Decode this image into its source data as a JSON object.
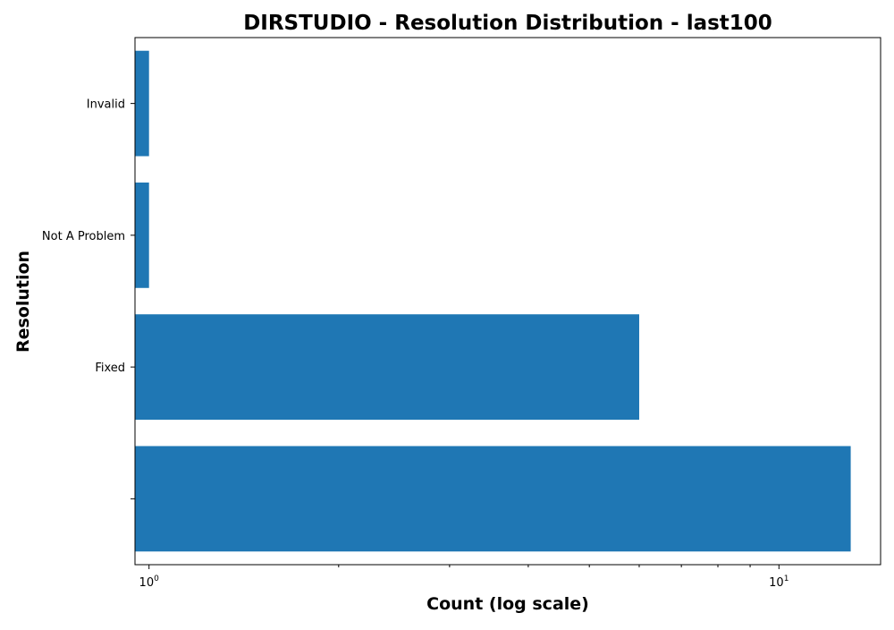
{
  "chart_data": {
    "type": "bar",
    "orientation": "horizontal",
    "title": "DIRSTUDIO - Resolution Distribution - last100",
    "xlabel": "Count (log scale)",
    "ylabel": "Resolution",
    "x_scale": "log",
    "xlim": [
      0.95,
      14.5
    ],
    "x_major_ticks": [
      {
        "value": 1,
        "base": "10",
        "exp": "0"
      },
      {
        "value": 10,
        "base": "10",
        "exp": "1"
      }
    ],
    "x_minor_ticks": [
      2,
      3,
      4,
      5,
      6,
      7,
      8,
      9
    ],
    "categories": [
      "",
      "Fixed",
      "Not A Problem",
      "Invalid"
    ],
    "values": [
      13,
      6,
      1,
      1
    ],
    "bar_color": "#1f77b4",
    "grid": false,
    "legend": "none"
  }
}
